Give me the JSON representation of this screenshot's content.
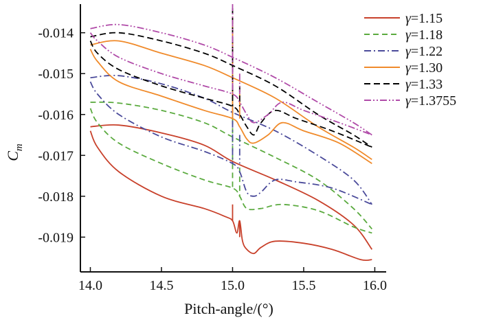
{
  "chart_data": {
    "type": "line",
    "title": "",
    "xlabel": "Pitch-angle/(°)",
    "ylabel": "C_m",
    "ylabel_main": "C",
    "ylabel_sub": "m",
    "xlim": [
      13.93,
      16.08
    ],
    "ylim": [
      -0.01985,
      -0.0133
    ],
    "xticks": [
      14.0,
      14.5,
      15.0,
      15.5,
      16.0
    ],
    "xtick_labels": [
      "14.0",
      "14.5",
      "15.0",
      "15.5",
      "16.0"
    ],
    "yticks": [
      -0.014,
      -0.015,
      -0.016,
      -0.017,
      -0.018,
      -0.019
    ],
    "ytick_labels": [
      "-0.014",
      "-0.015",
      "-0.016",
      "-0.017",
      "-0.018",
      "-0.019"
    ],
    "legend_position": "top-right",
    "series": [
      {
        "name": "γ=1.15",
        "symbol": "γ",
        "value_label": "=1.15",
        "color": "#c8402a",
        "dash": "solid",
        "upper": [
          [
            14.0,
            -0.0163
          ],
          [
            14.2,
            -0.01626
          ],
          [
            14.5,
            -0.01645
          ],
          [
            14.8,
            -0.01675
          ],
          [
            15.0,
            -0.01715
          ],
          [
            15.3,
            -0.0176
          ],
          [
            15.6,
            -0.0181
          ],
          [
            15.85,
            -0.0187
          ],
          [
            15.98,
            -0.0193
          ]
        ],
        "lower": [
          [
            14.0,
            -0.0164
          ],
          [
            14.05,
            -0.0168
          ],
          [
            14.2,
            -0.0174
          ],
          [
            14.5,
            -0.018
          ],
          [
            14.8,
            -0.0183
          ],
          [
            14.95,
            -0.0185
          ],
          [
            15.0,
            -0.0186
          ],
          [
            15.03,
            -0.0189
          ],
          [
            15.05,
            -0.0186
          ],
          [
            15.07,
            -0.0191
          ],
          [
            15.1,
            -0.0193
          ],
          [
            15.15,
            -0.0194
          ],
          [
            15.2,
            -0.01925
          ],
          [
            15.3,
            -0.0191
          ],
          [
            15.5,
            -0.01915
          ],
          [
            15.7,
            -0.0193
          ],
          [
            15.9,
            -0.01955
          ],
          [
            15.98,
            -0.01955
          ]
        ],
        "spikes": [
          [
            15.0,
            -0.0182
          ],
          [
            15.0,
            -0.0186
          ],
          [
            15.05,
            -0.0186
          ],
          [
            15.05,
            -0.019
          ]
        ]
      },
      {
        "name": "γ=1.18",
        "symbol": "γ",
        "value_label": "=1.18",
        "color": "#5aaa3e",
        "dash": "8 5",
        "upper": [
          [
            14.0,
            -0.0157
          ],
          [
            14.2,
            -0.01572
          ],
          [
            14.5,
            -0.0159
          ],
          [
            14.8,
            -0.0162
          ],
          [
            15.0,
            -0.01655
          ],
          [
            15.3,
            -0.01705
          ],
          [
            15.6,
            -0.0176
          ],
          [
            15.85,
            -0.0183
          ],
          [
            15.98,
            -0.0188
          ]
        ],
        "lower": [
          [
            14.0,
            -0.01585
          ],
          [
            14.05,
            -0.0162
          ],
          [
            14.2,
            -0.0167
          ],
          [
            14.5,
            -0.0172
          ],
          [
            14.8,
            -0.0176
          ],
          [
            15.0,
            -0.0178
          ],
          [
            15.05,
            -0.018
          ],
          [
            15.1,
            -0.0183
          ],
          [
            15.2,
            -0.0183
          ],
          [
            15.35,
            -0.0182
          ],
          [
            15.6,
            -0.01835
          ],
          [
            15.85,
            -0.01875
          ],
          [
            15.98,
            -0.0189
          ]
        ],
        "spikes": [
          [
            15.0,
            -0.0148
          ],
          [
            15.0,
            -0.0178
          ],
          [
            15.05,
            -0.0173
          ],
          [
            15.05,
            -0.018
          ]
        ]
      },
      {
        "name": "γ=1.22",
        "symbol": "γ",
        "value_label": "=1.22",
        "color": "#4a4a9a",
        "dash": "10 4 2 4",
        "upper": [
          [
            14.0,
            -0.0151
          ],
          [
            14.2,
            -0.01505
          ],
          [
            14.5,
            -0.01525
          ],
          [
            14.8,
            -0.0156
          ],
          [
            15.0,
            -0.01595
          ],
          [
            15.3,
            -0.0164
          ],
          [
            15.6,
            -0.017
          ],
          [
            15.85,
            -0.0176
          ],
          [
            15.98,
            -0.0182
          ]
        ],
        "lower": [
          [
            14.0,
            -0.0152
          ],
          [
            14.05,
            -0.0155
          ],
          [
            14.2,
            -0.016
          ],
          [
            14.5,
            -0.01655
          ],
          [
            14.8,
            -0.0169
          ],
          [
            15.0,
            -0.0172
          ],
          [
            15.05,
            -0.0174
          ],
          [
            15.1,
            -0.0179
          ],
          [
            15.15,
            -0.018
          ],
          [
            15.2,
            -0.0179
          ],
          [
            15.3,
            -0.0176
          ],
          [
            15.45,
            -0.01765
          ],
          [
            15.7,
            -0.0178
          ],
          [
            15.98,
            -0.0182
          ]
        ],
        "spikes": [
          [
            15.0,
            -0.0138
          ],
          [
            15.0,
            -0.0172
          ],
          [
            15.05,
            -0.0165
          ],
          [
            15.05,
            -0.0172
          ]
        ]
      },
      {
        "name": "γ=1.30",
        "symbol": "γ",
        "value_label": "=1.30",
        "color": "#f08a2a",
        "dash": "solid",
        "upper": [
          [
            14.0,
            -0.0143
          ],
          [
            14.2,
            -0.0142
          ],
          [
            14.5,
            -0.0145
          ],
          [
            14.8,
            -0.0148
          ],
          [
            15.0,
            -0.0151
          ],
          [
            15.3,
            -0.0156
          ],
          [
            15.6,
            -0.0163
          ],
          [
            15.85,
            -0.0168
          ],
          [
            15.98,
            -0.0171
          ]
        ],
        "lower": [
          [
            14.0,
            -0.0144
          ],
          [
            14.05,
            -0.0147
          ],
          [
            14.2,
            -0.0152
          ],
          [
            14.5,
            -0.01555
          ],
          [
            14.8,
            -0.0159
          ],
          [
            15.0,
            -0.0161
          ],
          [
            15.05,
            -0.0163
          ],
          [
            15.1,
            -0.0166
          ],
          [
            15.15,
            -0.0167
          ],
          [
            15.25,
            -0.0165
          ],
          [
            15.35,
            -0.0162
          ],
          [
            15.5,
            -0.0164
          ],
          [
            15.75,
            -0.0167
          ],
          [
            15.98,
            -0.0172
          ]
        ],
        "spikes": [
          [
            15.0,
            -0.0136
          ],
          [
            15.0,
            -0.0161
          ],
          [
            15.05,
            -0.0155
          ],
          [
            15.05,
            -0.0161
          ]
        ]
      },
      {
        "name": "γ=1.33",
        "symbol": "γ",
        "value_label": "=1.33",
        "color": "#000000",
        "dash": "9 5",
        "upper": [
          [
            14.0,
            -0.0141
          ],
          [
            14.2,
            -0.014
          ],
          [
            14.5,
            -0.0142
          ],
          [
            14.8,
            -0.0145
          ],
          [
            15.0,
            -0.0148
          ],
          [
            15.3,
            -0.0153
          ],
          [
            15.6,
            -0.016
          ],
          [
            15.85,
            -0.0165
          ],
          [
            15.98,
            -0.0168
          ]
        ],
        "lower": [
          [
            14.0,
            -0.0142
          ],
          [
            14.05,
            -0.0145
          ],
          [
            14.2,
            -0.0149
          ],
          [
            14.5,
            -0.0153
          ],
          [
            14.8,
            -0.0156
          ],
          [
            15.0,
            -0.0158
          ],
          [
            15.05,
            -0.016
          ],
          [
            15.1,
            -0.0163
          ],
          [
            15.15,
            -0.0165
          ],
          [
            15.2,
            -0.0162
          ],
          [
            15.3,
            -0.0159
          ],
          [
            15.45,
            -0.0161
          ],
          [
            15.7,
            -0.0164
          ],
          [
            15.98,
            -0.0168
          ]
        ],
        "spikes": [
          [
            15.0,
            -0.0134
          ],
          [
            15.0,
            -0.0158
          ],
          [
            15.05,
            -0.0153
          ],
          [
            15.05,
            -0.0158
          ]
        ]
      },
      {
        "name": "γ=1.3755",
        "symbol": "γ",
        "value_label": "=1.3755",
        "color": "#b04aa8",
        "dash": "10 3 2 3 2 3",
        "upper": [
          [
            14.0,
            -0.0139
          ],
          [
            14.2,
            -0.0138
          ],
          [
            14.5,
            -0.014
          ],
          [
            14.8,
            -0.0143
          ],
          [
            15.0,
            -0.0146
          ],
          [
            15.3,
            -0.0151
          ],
          [
            15.6,
            -0.0157
          ],
          [
            15.85,
            -0.0162
          ],
          [
            15.98,
            -0.0165
          ]
        ],
        "lower": [
          [
            14.0,
            -0.014
          ],
          [
            14.05,
            -0.0142
          ],
          [
            14.2,
            -0.0146
          ],
          [
            14.5,
            -0.015
          ],
          [
            14.8,
            -0.0153
          ],
          [
            15.0,
            -0.0155
          ],
          [
            15.05,
            -0.0157
          ],
          [
            15.1,
            -0.016
          ],
          [
            15.15,
            -0.0162
          ],
          [
            15.25,
            -0.016
          ],
          [
            15.35,
            -0.0157
          ],
          [
            15.5,
            -0.0159
          ],
          [
            15.75,
            -0.0162
          ],
          [
            15.98,
            -0.0165
          ]
        ],
        "spikes": [
          [
            15.0,
            -0.0133
          ],
          [
            15.0,
            -0.0155
          ],
          [
            15.05,
            -0.015
          ],
          [
            15.05,
            -0.0155
          ]
        ]
      }
    ]
  }
}
